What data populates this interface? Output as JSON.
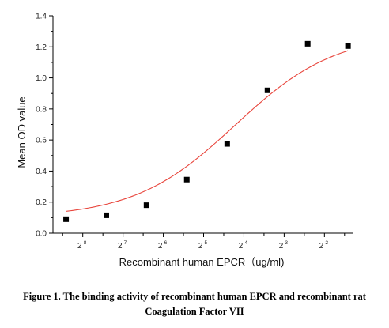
{
  "chart_data": {
    "type": "scatter",
    "xlabel": "Recombinant human  EPCR（ug/ml)",
    "ylabel": "Mean OD value",
    "x_scale": "log2",
    "x_tick_labels": [
      {
        "base": "2",
        "exp": "-8"
      },
      {
        "base": "2",
        "exp": "-7"
      },
      {
        "base": "2",
        "exp": "-6"
      },
      {
        "base": "2",
        "exp": "-5"
      },
      {
        "base": "2",
        "exp": "-4"
      },
      {
        "base": "2",
        "exp": "-3"
      },
      {
        "base": "2",
        "exp": "-2"
      }
    ],
    "y_ticks": [
      "0.0",
      "0.2",
      "0.4",
      "0.6",
      "0.8",
      "1.0",
      "1.2",
      "1.4"
    ],
    "ylim": [
      0,
      1.4
    ],
    "points": [
      {
        "x": 0.00293,
        "y": 0.09
      },
      {
        "x": 0.00586,
        "y": 0.115
      },
      {
        "x": 0.0117,
        "y": 0.18
      },
      {
        "x": 0.0234,
        "y": 0.345
      },
      {
        "x": 0.0469,
        "y": 0.575
      },
      {
        "x": 0.0938,
        "y": 0.92
      },
      {
        "x": 0.1875,
        "y": 1.22
      },
      {
        "x": 0.375,
        "y": 1.205
      }
    ],
    "fit_curve": {
      "type": "sigmoid",
      "bottom": 0.1,
      "top": 1.29,
      "log2_ec50": -4.22,
      "slope": 1.15,
      "color": "#e8453c"
    },
    "marker_color": "#000000",
    "grid": false,
    "legend": "none"
  },
  "caption": {
    "line1": "Figure 1. The binding activity of recombinant human EPCR and recombinant rat",
    "line2": "Coagulation Factor VII"
  }
}
